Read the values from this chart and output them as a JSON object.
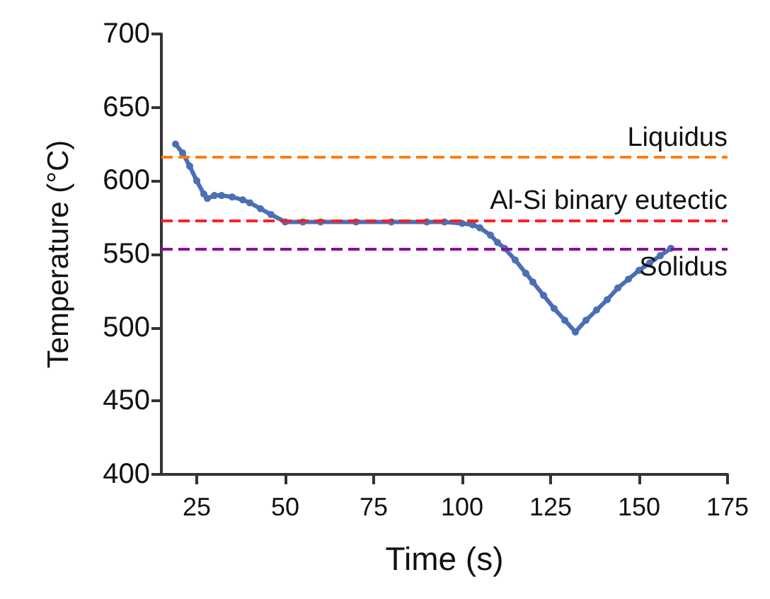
{
  "chart_data": {
    "type": "line",
    "xlabel": "Time (s)",
    "ylabel": "Temperature (°C)",
    "x": [
      19,
      21,
      23,
      25,
      27,
      28,
      30,
      32,
      35,
      38,
      40,
      43,
      46,
      50,
      55,
      60,
      70,
      80,
      90,
      95,
      100,
      103,
      105,
      108,
      110,
      112,
      115,
      118,
      120,
      123,
      126,
      129,
      132,
      135,
      138,
      141,
      144,
      147,
      150,
      153,
      156,
      159
    ],
    "series": [
      {
        "color": "#4a6fb5",
        "values": [
          625,
          619,
          610,
          600,
          591,
          588,
          590,
          590,
          589,
          587,
          585,
          581,
          577,
          572,
          572,
          572,
          572,
          572,
          572,
          572,
          571,
          570,
          568,
          563,
          558,
          554,
          546,
          537,
          531,
          522,
          513,
          505,
          497,
          505,
          512,
          519,
          527,
          533,
          539,
          544,
          549,
          554
        ]
      }
    ],
    "xlim": [
      15,
      175
    ],
    "xticks": [
      25,
      50,
      75,
      100,
      125,
      150,
      175
    ],
    "ylim": [
      400,
      700
    ],
    "yticks": [
      400,
      450,
      500,
      550,
      600,
      650,
      700
    ],
    "grid": false,
    "marker": "circle",
    "line_style": "solid",
    "ref_lines": [
      {
        "axis": "y",
        "value": 616,
        "label": "Liquidus",
        "color": "#ff7f0e",
        "line_style": "dashed"
      },
      {
        "axis": "y",
        "value": 573,
        "label": "Al-Si binary eutectic",
        "color": "#ff1f1f",
        "line_style": "dashed"
      },
      {
        "axis": "y",
        "value": 554,
        "label": "Solidus",
        "color": "#8b0d9e",
        "line_style": "dashed"
      }
    ]
  }
}
